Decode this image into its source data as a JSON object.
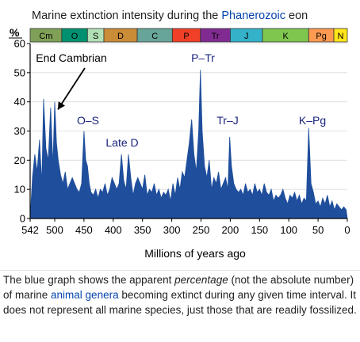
{
  "chart_data": {
    "type": "area",
    "title_prefix": "Marine extinction intensity during the ",
    "title_link": "Phanerozoic",
    "title_suffix": " eon",
    "ylabel": "%",
    "xlabel": "Millions of years ago",
    "xlim": [
      542,
      0
    ],
    "ylim": [
      0,
      60
    ],
    "x_ticks": [
      542,
      500,
      450,
      400,
      350,
      300,
      250,
      200,
      150,
      100,
      50,
      0
    ],
    "y_ticks": [
      0,
      10,
      20,
      30,
      40,
      50,
      60
    ],
    "series_color": "#1f4e9c",
    "periods": [
      {
        "label": "Cm",
        "start": 542,
        "end": 488,
        "color": "#7fa056"
      },
      {
        "label": "O",
        "start": 488,
        "end": 444,
        "color": "#009270"
      },
      {
        "label": "S",
        "start": 444,
        "end": 416,
        "color": "#b3e1b6"
      },
      {
        "label": "D",
        "start": 416,
        "end": 359,
        "color": "#cb8c37"
      },
      {
        "label": "C",
        "start": 359,
        "end": 299,
        "color": "#67a599"
      },
      {
        "label": "P",
        "start": 299,
        "end": 251,
        "color": "#f04028"
      },
      {
        "label": "Tr",
        "start": 251,
        "end": 200,
        "color": "#812b92"
      },
      {
        "label": "J",
        "start": 200,
        "end": 145,
        "color": "#34b2c9"
      },
      {
        "label": "K",
        "start": 145,
        "end": 66,
        "color": "#7fc64e"
      },
      {
        "label": "Pg",
        "start": 66,
        "end": 23,
        "color": "#fd9a52"
      },
      {
        "label": "N",
        "start": 23,
        "end": 0,
        "color": "#ffe619"
      }
    ],
    "annotations": [
      {
        "label": "End Cambrian",
        "x": 500,
        "y": 39
      },
      {
        "label": "O–S",
        "x": 445,
        "y": 30
      },
      {
        "label": "Late D",
        "x": 372,
        "y": 22
      },
      {
        "label": "P–Tr",
        "x": 251,
        "y": 52
      },
      {
        "label": "Tr–J",
        "x": 201,
        "y": 29
      },
      {
        "label": "K–Pg",
        "x": 66,
        "y": 31
      }
    ],
    "x": [
      542,
      538,
      534,
      530,
      526,
      522,
      519,
      515,
      511,
      507,
      503,
      500,
      497,
      494,
      490,
      486,
      482,
      478,
      474,
      470,
      466,
      462,
      458,
      454,
      450,
      447,
      444,
      441,
      438,
      434,
      430,
      426,
      422,
      418,
      414,
      410,
      406,
      402,
      398,
      394,
      390,
      386,
      382,
      378,
      374,
      370,
      366,
      362,
      358,
      354,
      350,
      346,
      342,
      338,
      334,
      330,
      326,
      322,
      318,
      314,
      310,
      306,
      302,
      298,
      294,
      290,
      286,
      282,
      278,
      274,
      270,
      266,
      262,
      258,
      254,
      251,
      248,
      244,
      240,
      236,
      232,
      228,
      224,
      220,
      216,
      212,
      208,
      204,
      201,
      198,
      194,
      190,
      186,
      182,
      178,
      174,
      170,
      166,
      162,
      158,
      154,
      150,
      146,
      142,
      138,
      134,
      130,
      126,
      122,
      118,
      114,
      110,
      106,
      102,
      98,
      94,
      90,
      86,
      82,
      78,
      74,
      70,
      66,
      62,
      58,
      54,
      50,
      46,
      42,
      38,
      34,
      30,
      26,
      22,
      18,
      14,
      10,
      6,
      2,
      0
    ],
    "values": [
      0,
      14,
      22,
      16,
      27,
      12,
      41,
      24,
      20,
      38,
      18,
      40,
      26,
      20,
      15,
      12,
      16,
      10,
      12,
      14,
      12,
      10,
      9,
      12,
      30,
      20,
      18,
      12,
      9,
      8,
      10,
      7,
      10,
      9,
      12,
      8,
      10,
      14,
      12,
      10,
      12,
      22,
      13,
      10,
      22,
      14,
      8,
      12,
      14,
      12,
      10,
      15,
      8,
      10,
      9,
      12,
      8,
      10,
      7,
      9,
      8,
      10,
      6,
      12,
      8,
      14,
      10,
      16,
      14,
      20,
      26,
      34,
      22,
      16,
      30,
      51,
      30,
      18,
      14,
      20,
      10,
      14,
      12,
      16,
      10,
      12,
      14,
      10,
      28,
      18,
      12,
      10,
      9,
      10,
      8,
      12,
      9,
      10,
      8,
      12,
      9,
      10,
      8,
      12,
      9,
      8,
      10,
      6,
      8,
      7,
      8,
      10,
      7,
      5,
      8,
      7,
      9,
      6,
      8,
      5,
      7,
      6,
      31,
      12,
      9,
      5,
      6,
      4,
      7,
      5,
      8,
      4,
      6,
      3,
      5,
      4,
      3,
      4,
      3,
      0
    ]
  },
  "caption": {
    "part1": "The blue graph shows the apparent ",
    "italic": "percentage",
    "part2": " (not the absolute number) of marine ",
    "link": "animal genera",
    "part3": " becoming extinct during any given time interval. It does not represent all marine species, just those that are readily fossilized."
  }
}
